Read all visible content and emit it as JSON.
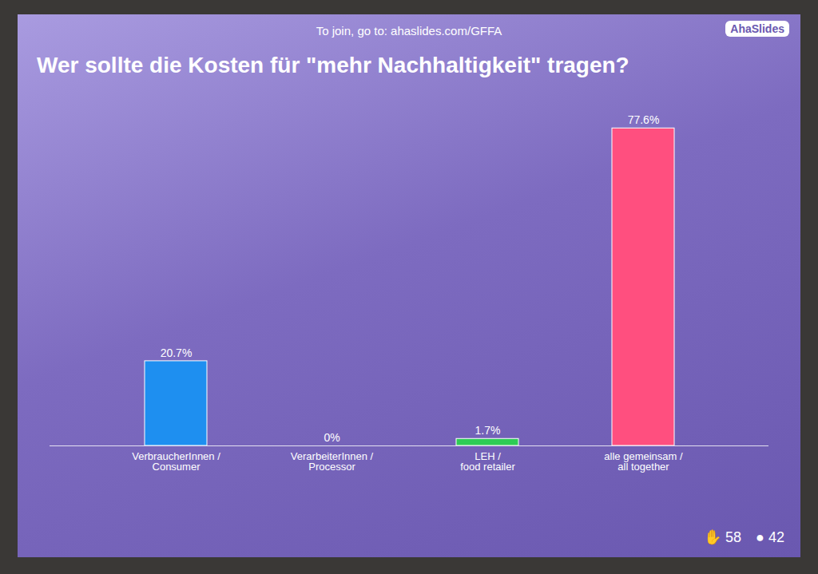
{
  "chart_data": {
    "type": "bar",
    "header": "To join, go to: ahaslides.com/GFFA",
    "brand": "AhaSlides",
    "title": "Wer sollte die Kosten für \"mehr Nachhaltigkeit\" tragen?",
    "categories": [
      "VerbraucherInnen / Consumer",
      "VerarbeiterInnen / Processor",
      "LEH / food retailer",
      "alle gemeinsam / all together"
    ],
    "values": [
      20.7,
      0,
      1.7,
      77.6
    ],
    "value_labels": [
      "20.7%",
      "0%",
      "1.7%",
      "77.6%"
    ],
    "colors": [
      "#1e8ff0",
      "#f5a623",
      "#2ecc55",
      "#ff4f7f"
    ],
    "ylim": [
      0,
      80
    ],
    "data_labels": true,
    "tick_labels": "x",
    "grid": false,
    "responses": 58,
    "participants": 42
  }
}
